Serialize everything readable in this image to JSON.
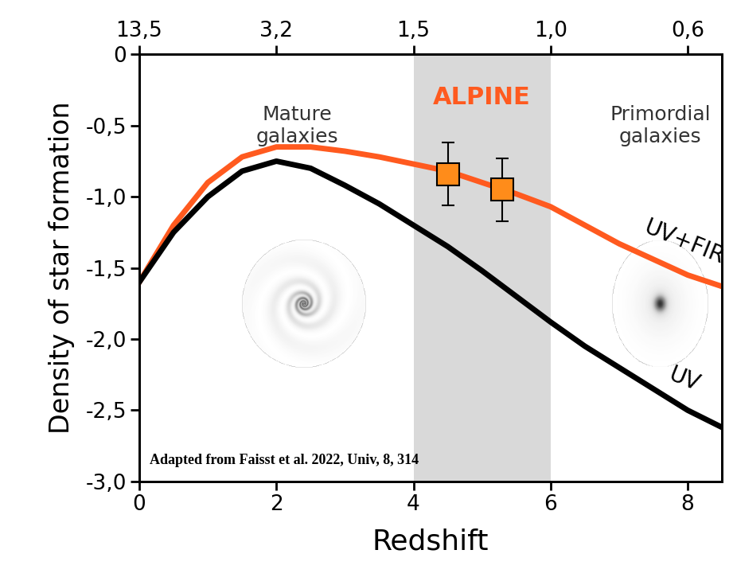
{
  "chart_data": {
    "type": "line",
    "x_label": "Redshift",
    "y_label": "Density of star formation",
    "xlim": [
      0,
      8.5
    ],
    "xticks": [
      0,
      2,
      4,
      6,
      8
    ],
    "x2lim": [
      0,
      8.5
    ],
    "x2ticks": [
      {
        "value": 0,
        "label": "13,5"
      },
      {
        "value": 2,
        "label": "3,2"
      },
      {
        "value": 4,
        "label": "1,5"
      },
      {
        "value": 6,
        "label": "1,0"
      },
      {
        "value": 8,
        "label": "0,6"
      }
    ],
    "ylim": [
      -3.0,
      0
    ],
    "yticks": [
      0,
      {
        "value": -0.5,
        "label": "-0,5"
      },
      {
        "value": -1.0,
        "label": "-1,0"
      },
      {
        "value": -1.5,
        "label": "-1,5"
      },
      {
        "value": -2.0,
        "label": "-2,0"
      },
      {
        "value": -2.5,
        "label": "-2,5"
      },
      {
        "value": -3.0,
        "label": "-3,0"
      }
    ],
    "grid": false,
    "series": [
      {
        "name": "UV+FIR",
        "type": "line",
        "color": "#ff5a1f",
        "line_style": "solid",
        "x": [
          0,
          0.5,
          1,
          1.5,
          2,
          2.5,
          3,
          3.5,
          4,
          4.5,
          5,
          5.5,
          6,
          6.5,
          7,
          7.5,
          8,
          8.5
        ],
        "values": [
          -1.6,
          -1.2,
          -0.9,
          -0.72,
          -0.65,
          -0.65,
          -0.68,
          -0.72,
          -0.77,
          -0.82,
          -0.9,
          -0.98,
          -1.07,
          -1.2,
          -1.33,
          -1.44,
          -1.55,
          -1.63
        ]
      },
      {
        "name": "UV",
        "type": "line",
        "color": "#000000",
        "line_style": "solid",
        "x": [
          0,
          0.5,
          1,
          1.5,
          2,
          2.5,
          3,
          3.5,
          4,
          4.5,
          5,
          5.5,
          6,
          6.5,
          7,
          7.5,
          8,
          8.5
        ],
        "values": [
          -1.6,
          -1.25,
          -1.0,
          -0.82,
          -0.75,
          -0.8,
          -0.92,
          -1.05,
          -1.2,
          -1.35,
          -1.52,
          -1.7,
          -1.88,
          -2.05,
          -2.2,
          -2.35,
          -2.5,
          -2.62
        ]
      },
      {
        "type": "scatter",
        "color": "#ff8c1a",
        "marker": "square",
        "x": [
          4.51,
          5.29
        ],
        "values": [
          -0.84,
          -0.95
        ],
        "error": [
          0.22,
          0.22
        ]
      }
    ],
    "bands": [
      {
        "x": [
          4,
          6
        ],
        "label": "ALPINE",
        "color": "#d9d9d9",
        "label_color": "#ff5a1f"
      }
    ],
    "annotations": [
      "Mature\ngalaxies",
      "Primordial\ngalaxies",
      "Adapted from Faisst et al. 2022, Univ, 8, 314"
    ]
  }
}
